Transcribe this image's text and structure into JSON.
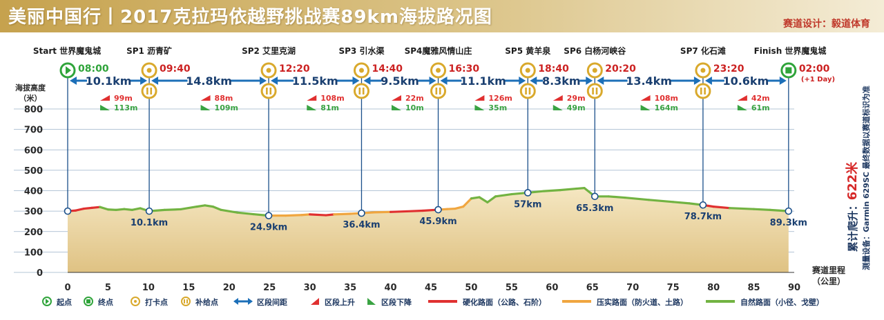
{
  "header": {
    "title": "美丽中国行丨2017克拉玛依越野挑战赛89km海拔路况图",
    "designer": "赛道设计：毅道体育"
  },
  "side": {
    "total_label": "累计爬升：",
    "total_value": "622米",
    "device_note": "测量设备：Garmin 629SC 最终数据以赛道标识为准"
  },
  "chart_data": {
    "type": "area",
    "ylabel": "海拔高度（米）",
    "xlabel": "赛道里程（公里）",
    "ylim": [
      0,
      800
    ],
    "xlim": [
      0,
      90
    ],
    "yticks": [
      0,
      100,
      200,
      300,
      400,
      500,
      600,
      700,
      800
    ],
    "xticks": [
      0,
      5,
      10,
      15,
      20,
      25,
      30,
      35,
      40,
      45,
      50,
      55,
      60,
      65,
      70,
      75,
      80,
      85,
      90
    ],
    "grid": true,
    "colors": {
      "hard_surface": "#e03030",
      "packed_surface": "#f0a640",
      "natural_surface": "#72b342",
      "up": "#e03030",
      "down": "#3aa343",
      "distance_arrow": "#1c6fb8",
      "time_red": "#cc2222",
      "start_green": "#2fa43a",
      "checkpoint_gold": "#d9a92c"
    },
    "profile": [
      [
        0,
        300,
        "hard"
      ],
      [
        1,
        303,
        "hard"
      ],
      [
        2,
        312,
        "hard"
      ],
      [
        3,
        316,
        "hard"
      ],
      [
        4,
        320,
        "natural"
      ],
      [
        5,
        308,
        "natural"
      ],
      [
        6,
        306,
        "natural"
      ],
      [
        7,
        310,
        "natural"
      ],
      [
        8,
        306,
        "natural"
      ],
      [
        9,
        314,
        "natural"
      ],
      [
        10.1,
        300,
        "natural"
      ],
      [
        12,
        306,
        "natural"
      ],
      [
        14,
        309,
        "natural"
      ],
      [
        16,
        322,
        "natural"
      ],
      [
        17,
        328,
        "natural"
      ],
      [
        18,
        322,
        "natural"
      ],
      [
        19,
        306,
        "natural"
      ],
      [
        21,
        293,
        "natural"
      ],
      [
        23,
        285,
        "natural"
      ],
      [
        24.9,
        278,
        "packed"
      ],
      [
        27,
        278,
        "packed"
      ],
      [
        29,
        281,
        "packed"
      ],
      [
        30,
        284,
        "hard"
      ],
      [
        32,
        280,
        "hard"
      ],
      [
        33,
        284,
        "packed"
      ],
      [
        35,
        287,
        "packed"
      ],
      [
        36.4,
        290,
        "packed"
      ],
      [
        38,
        294,
        "packed"
      ],
      [
        40,
        296,
        "hard"
      ],
      [
        42,
        299,
        "hard"
      ],
      [
        44,
        302,
        "hard"
      ],
      [
        45.9,
        307,
        "packed"
      ],
      [
        47,
        310,
        "packed"
      ],
      [
        48,
        312,
        "packed"
      ],
      [
        49,
        322,
        "packed"
      ],
      [
        50,
        362,
        "natural"
      ],
      [
        51,
        368,
        "natural"
      ],
      [
        52,
        343,
        "natural"
      ],
      [
        53,
        372,
        "natural"
      ],
      [
        55,
        383,
        "natural"
      ],
      [
        57,
        390,
        "natural"
      ],
      [
        59,
        398,
        "natural"
      ],
      [
        61,
        403,
        "natural"
      ],
      [
        63,
        410,
        "natural"
      ],
      [
        64,
        413,
        "natural"
      ],
      [
        65.3,
        372,
        "natural"
      ],
      [
        67,
        372,
        "natural"
      ],
      [
        69,
        366,
        "natural"
      ],
      [
        72,
        355,
        "natural"
      ],
      [
        75,
        345,
        "natural"
      ],
      [
        77,
        338,
        "natural"
      ],
      [
        78.7,
        330,
        "hard"
      ],
      [
        80,
        322,
        "hard"
      ],
      [
        82,
        315,
        "natural"
      ],
      [
        85,
        310,
        "natural"
      ],
      [
        87,
        306,
        "natural"
      ],
      [
        89.3,
        300,
        "natural"
      ]
    ],
    "points": [
      {
        "km": 0,
        "name": "Start 世界魔鬼城",
        "time": "08:00",
        "type": "start",
        "label": ""
      },
      {
        "km": 10.1,
        "name": "SP1 沥青矿",
        "time": "09:40",
        "type": "checkpoint",
        "label": "10.1km"
      },
      {
        "km": 24.9,
        "name": "SP2 艾里克湖",
        "time": "12:20",
        "type": "checkpoint",
        "label": "24.9km"
      },
      {
        "km": 36.4,
        "name": "SP3 引水渠",
        "time": "14:40",
        "type": "checkpoint",
        "label": "36.4km"
      },
      {
        "km": 45.9,
        "name": "SP4魔雅风情山庄",
        "time": "16:30",
        "type": "checkpoint",
        "label": "45.9km"
      },
      {
        "km": 57,
        "name": "SP5 黄羊泉",
        "time": "18:40",
        "type": "checkpoint",
        "label": "57km"
      },
      {
        "km": 65.3,
        "name": "SP6 白杨河峡谷",
        "time": "20:20",
        "type": "checkpoint",
        "label": "65.3km"
      },
      {
        "km": 78.7,
        "name": "SP7 化石滩",
        "time": "23:20",
        "type": "checkpoint",
        "label": "78.7km"
      },
      {
        "km": 89.3,
        "name": "Finish 世界魔鬼城",
        "time": "02:00",
        "time_note": "(+1 Day)",
        "type": "finish",
        "label": "89.3km"
      }
    ],
    "segments": [
      {
        "distance": "10.1km",
        "up": "99m",
        "down": "113m"
      },
      {
        "distance": "14.8km",
        "up": "88m",
        "down": "109m"
      },
      {
        "distance": "11.5km",
        "up": "108m",
        "down": "81m"
      },
      {
        "distance": "9.5km",
        "up": "22m",
        "down": "10m"
      },
      {
        "distance": "11.1km",
        "up": "126m",
        "down": "35m"
      },
      {
        "distance": "8.3km",
        "up": "29m",
        "down": "49m"
      },
      {
        "distance": "13.4km",
        "up": "108m",
        "down": "164m"
      },
      {
        "distance": "10.6km",
        "up": "42m",
        "down": "61m"
      }
    ],
    "legend": [
      {
        "icon": "start",
        "label": "起点"
      },
      {
        "icon": "finish",
        "label": "终点"
      },
      {
        "icon": "checkin",
        "label": "打卡点"
      },
      {
        "icon": "supply",
        "label": "补给点"
      },
      {
        "icon": "distance",
        "label": "区段间距"
      },
      {
        "icon": "up",
        "label": "区段上升"
      },
      {
        "icon": "down",
        "label": "区段下降"
      },
      {
        "icon": "hard",
        "label": "硬化路面（公路、石阶）"
      },
      {
        "icon": "packed",
        "label": "压实路面（防火道、土路）"
      },
      {
        "icon": "natural",
        "label": "自然路面（小径、戈壁）"
      }
    ]
  }
}
